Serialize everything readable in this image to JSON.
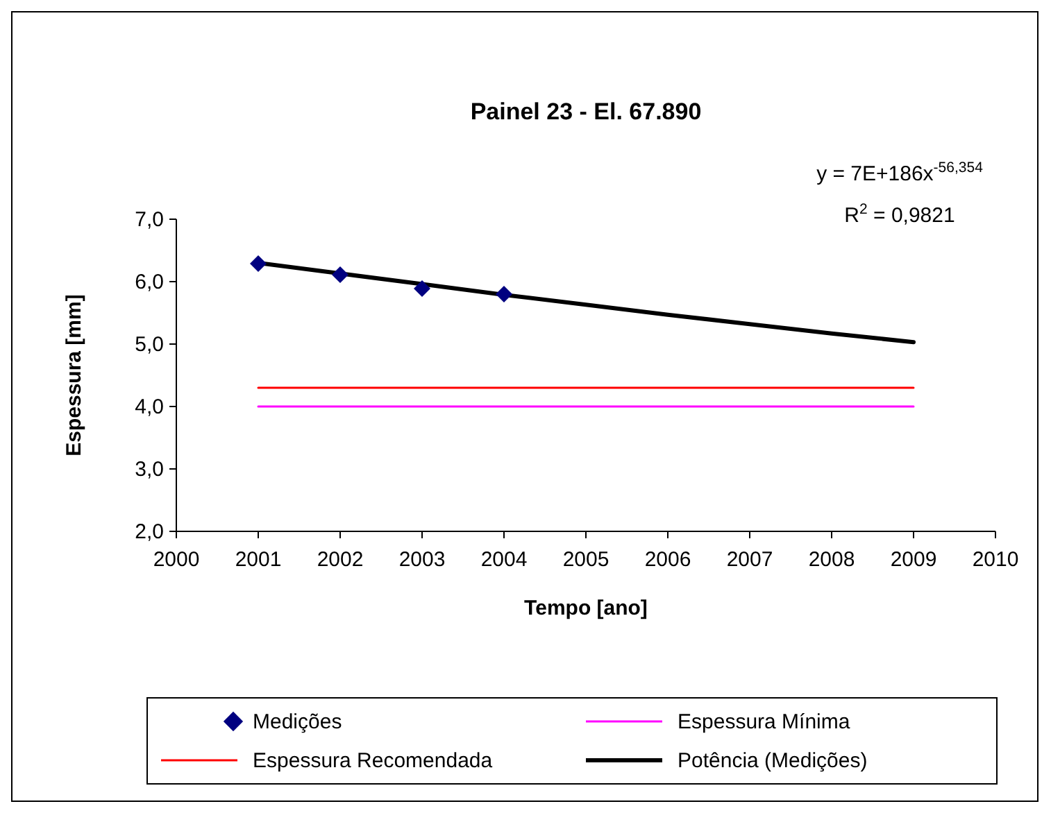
{
  "chart_data": {
    "type": "line",
    "title": "Painel 23 - El. 67.890",
    "xlabel": "Tempo [ano]",
    "ylabel": "Espessura [mm]",
    "xlim": [
      2000,
      2010
    ],
    "xticks": [
      2000,
      2001,
      2002,
      2003,
      2004,
      2005,
      2006,
      2007,
      2008,
      2009,
      2010
    ],
    "ylim": [
      2,
      7
    ],
    "yticks": [
      {
        "value": 2,
        "label": "2,0"
      },
      {
        "value": 3,
        "label": "3,0"
      },
      {
        "value": 4,
        "label": "4,0"
      },
      {
        "value": 5,
        "label": "5,0"
      },
      {
        "value": 6,
        "label": "6,0"
      },
      {
        "value": 7,
        "label": "7,0"
      }
    ],
    "grid": false,
    "legend": "bottom",
    "annotations": [
      "y = 7E+186x$^{-56,354}$",
      "R$^{2}$ = 0,9821"
    ],
    "series": [
      {
        "name": "Medições",
        "type": "scatter",
        "marker": "diamond",
        "color": "#000080",
        "x": [
          2001,
          2002,
          2003,
          2004
        ],
        "values": [
          6.29,
          6.11,
          5.89,
          5.8
        ]
      },
      {
        "name": "Espessura Mínima",
        "color": "#ff00ff",
        "x": [
          2001,
          2009
        ],
        "values": [
          4.0,
          4.0
        ]
      },
      {
        "name": "Espessura Recomendada",
        "color": "#ff0000",
        "x": [
          2001,
          2009
        ],
        "values": [
          4.3,
          4.3
        ]
      },
      {
        "name": "Potência (Medições)",
        "color": "#000000",
        "x": [
          2001,
          2002,
          2003,
          2004,
          2005,
          2006,
          2007,
          2008,
          2009
        ],
        "values": [
          6.3,
          6.13,
          5.96,
          5.79,
          5.63,
          5.47,
          5.32,
          5.17,
          5.03
        ]
      }
    ]
  }
}
